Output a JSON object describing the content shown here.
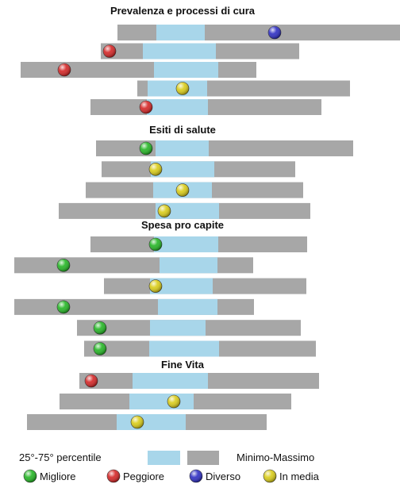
{
  "chart_data": {
    "type": "range-dot",
    "x_range": [
      0,
      504
    ],
    "colors": {
      "range": "#a7a7a7",
      "iqr": "#a8d6ea",
      "Migliore": "#22b522",
      "Peggiore": "#d42424",
      "Diverso": "#2c2cc2",
      "In media": "#d9cc16"
    },
    "sections": [
      {
        "title": "Prevalenza e processi di cura",
        "rows": [
          {
            "min": 148,
            "max": 504,
            "p25": 197,
            "p75": 258,
            "value": 346,
            "status": "Diverso"
          },
          {
            "min": 127,
            "max": 377,
            "p25": 180,
            "p75": 272,
            "value": 138,
            "status": "Peggiore"
          },
          {
            "min": 26,
            "max": 323,
            "p25": 194,
            "p75": 275,
            "value": 81,
            "status": "Peggiore"
          },
          {
            "min": 173,
            "max": 441,
            "p25": 186,
            "p75": 261,
            "value": 230,
            "status": "In media"
          },
          {
            "min": 114,
            "max": 405,
            "p25": 185,
            "p75": 262,
            "value": 184,
            "status": "Peggiore"
          }
        ]
      },
      {
        "title": "Esiti di salute",
        "rows": [
          {
            "min": 121,
            "max": 445,
            "p25": 196,
            "p75": 263,
            "value": 184,
            "status": "Migliore"
          },
          {
            "min": 128,
            "max": 372,
            "p25": 190,
            "p75": 270,
            "value": 196,
            "status": "In media"
          },
          {
            "min": 108,
            "max": 382,
            "p25": 193,
            "p75": 267,
            "value": 230,
            "status": "In media"
          },
          {
            "min": 74,
            "max": 391,
            "p25": 196,
            "p75": 276,
            "value": 207,
            "status": "In media"
          }
        ]
      },
      {
        "title": "Spesa pro capite",
        "rows": [
          {
            "min": 114,
            "max": 387,
            "p25": 194,
            "p75": 275,
            "value": 196,
            "status": "Migliore"
          },
          {
            "min": 18,
            "max": 319,
            "p25": 201,
            "p75": 274,
            "value": 80,
            "status": "Migliore"
          },
          {
            "min": 131,
            "max": 386,
            "p25": 189,
            "p75": 268,
            "value": 196,
            "status": "In media"
          },
          {
            "min": 18,
            "max": 320,
            "p25": 199,
            "p75": 274,
            "value": 80,
            "status": "Migliore"
          },
          {
            "min": 97,
            "max": 379,
            "p25": 189,
            "p75": 259,
            "value": 126,
            "status": "Migliore"
          },
          {
            "min": 106,
            "max": 398,
            "p25": 188,
            "p75": 276,
            "value": 126,
            "status": "Migliore"
          }
        ]
      },
      {
        "title": "Fine Vita",
        "rows": [
          {
            "min": 100,
            "max": 402,
            "p25": 167,
            "p75": 262,
            "value": 115,
            "status": "Peggiore"
          },
          {
            "min": 75,
            "max": 367,
            "p25": 163,
            "p75": 244,
            "value": 219,
            "status": "In media"
          },
          {
            "min": 34,
            "max": 336,
            "p25": 147,
            "p75": 234,
            "value": 173,
            "status": "In media"
          }
        ]
      }
    ],
    "legend": {
      "iqr_label": "25°-75° percentile",
      "range_label": "Minimo-Massimo",
      "items": [
        {
          "label": "Migliore",
          "status": "Migliore"
        },
        {
          "label": "Peggiore",
          "status": "Peggiore"
        },
        {
          "label": "Diverso",
          "status": "Diverso"
        },
        {
          "label": "In media",
          "status": "In media"
        }
      ]
    }
  }
}
